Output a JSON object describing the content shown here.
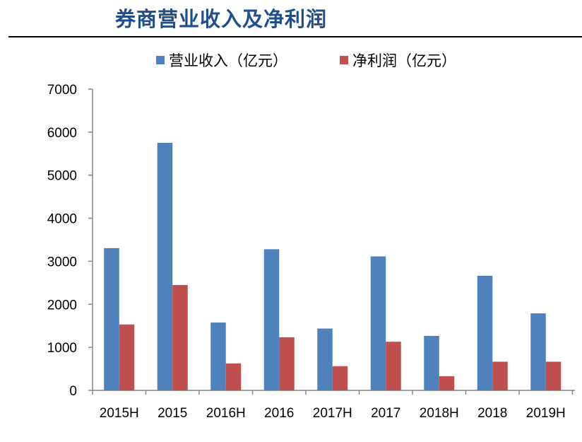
{
  "title": "券商营业收入及净利润",
  "colors": {
    "revenue": "#4f81bd",
    "profit": "#c0504d",
    "title": "#1f4e8c"
  },
  "chart_data": {
    "type": "bar",
    "categories": [
      "2015H",
      "2015",
      "2016H",
      "2016",
      "2017H",
      "2017",
      "2018H",
      "2018",
      "2019H"
    ],
    "series": [
      {
        "name": "营业收入（亿元）",
        "values": [
          3305,
          5752,
          1576,
          3280,
          1437,
          3113,
          1266,
          2663,
          1789
        ]
      },
      {
        "name": "净利润（亿元）",
        "values": [
          1532,
          2448,
          625,
          1234,
          563,
          1130,
          329,
          666,
          666
        ]
      }
    ],
    "yticks": [
      "0",
      "1000",
      "2000",
      "3000",
      "4000",
      "5000",
      "6000",
      "7000"
    ],
    "ylim": [
      0,
      7000
    ],
    "legend": "top",
    "grid": false
  }
}
